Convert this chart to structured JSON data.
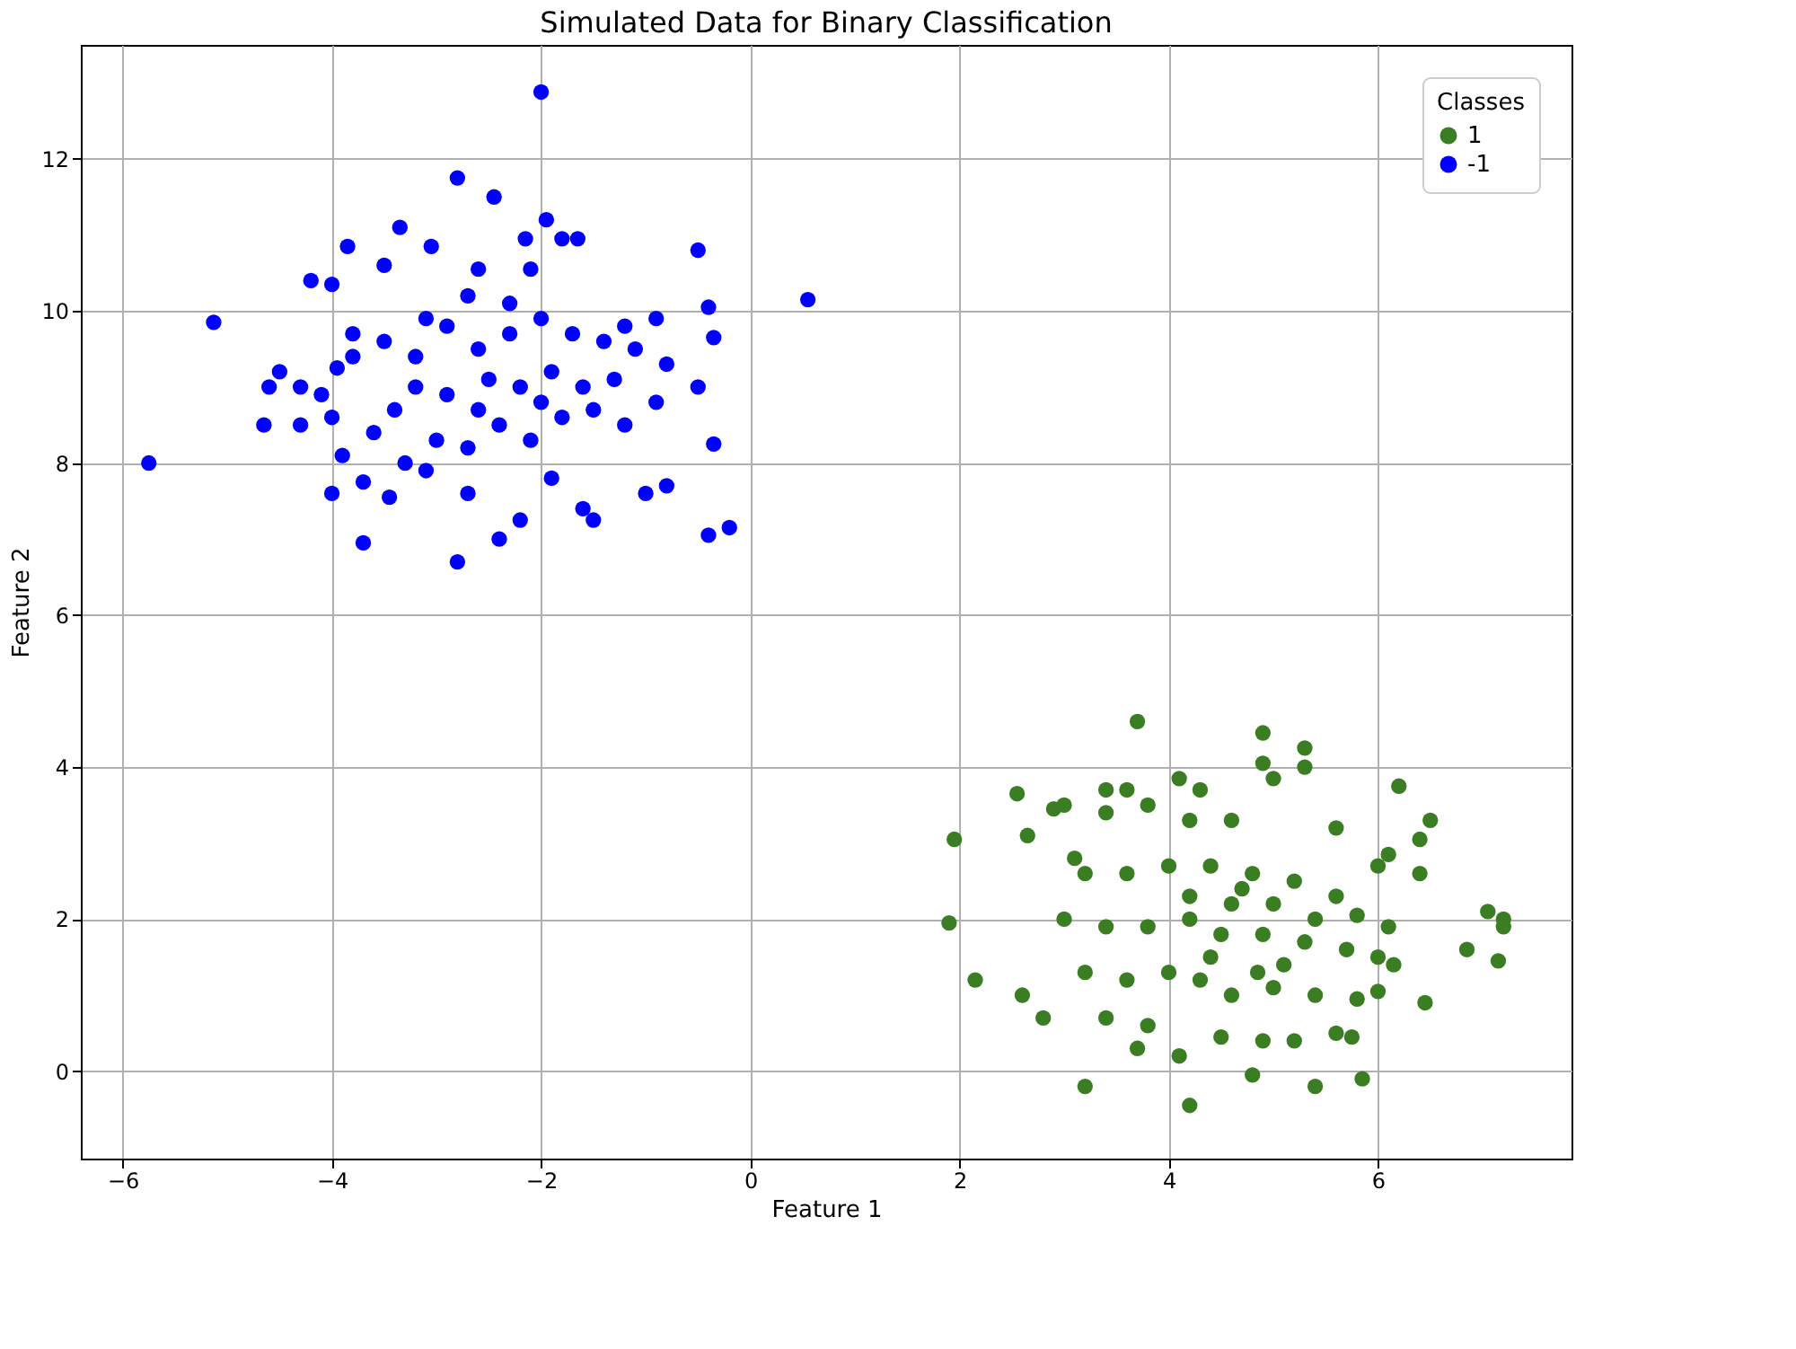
{
  "chart_data": {
    "type": "scatter",
    "title": "Simulated Data for Binary Classification",
    "xlabel": "Feature 1",
    "ylabel": "Feature 2",
    "legend_title": "Classes",
    "legend": "top right",
    "grid": true,
    "marker": "circle",
    "xlim": [
      -6.4,
      7.85
    ],
    "ylim": [
      -1.15,
      13.5
    ],
    "xticks": [
      {
        "value": -6,
        "label": "−6"
      },
      {
        "value": -4,
        "label": "−4"
      },
      {
        "value": -2,
        "label": "−2"
      },
      0,
      2,
      4,
      6
    ],
    "yticks": [
      0,
      2,
      4,
      6,
      8,
      10,
      12
    ],
    "series": [
      {
        "name": "1",
        "color": "#3a7d22",
        "x": [
          3.7,
          4.9,
          5.3,
          5.3,
          4.9,
          5.0,
          6.2,
          4.1,
          4.3,
          3.4,
          3.6,
          3.8,
          2.55,
          2.9,
          3.0,
          3.4,
          1.95,
          2.65,
          6.5,
          6.4,
          6.1,
          5.6,
          4.2,
          4.6,
          3.1,
          3.2,
          3.6,
          4.0,
          4.4,
          4.8,
          5.2,
          5.6,
          6.0,
          6.4,
          4.2,
          4.6,
          5.0,
          5.4,
          5.8,
          6.1,
          1.9,
          3.0,
          3.4,
          3.8,
          4.2,
          4.5,
          4.9,
          5.3,
          5.7,
          6.0,
          7.05,
          7.2,
          7.2,
          6.85,
          7.15,
          2.15,
          2.6,
          2.8,
          3.2,
          3.4,
          3.6,
          3.8,
          4.0,
          4.3,
          4.6,
          5.0,
          5.4,
          5.8,
          6.0,
          6.45,
          6.15,
          3.7,
          4.1,
          4.5,
          4.9,
          5.2,
          5.6,
          5.75,
          3.2,
          4.2,
          4.8,
          5.4,
          5.85,
          4.7,
          4.4,
          4.85,
          5.1
        ],
        "values": [
          4.6,
          4.45,
          4.25,
          4.0,
          4.05,
          3.85,
          3.75,
          3.85,
          3.7,
          3.7,
          3.7,
          3.5,
          3.65,
          3.45,
          3.5,
          3.4,
          3.05,
          3.1,
          3.3,
          3.05,
          2.85,
          3.2,
          3.3,
          3.3,
          2.8,
          2.6,
          2.6,
          2.7,
          2.7,
          2.6,
          2.5,
          2.3,
          2.7,
          2.6,
          2.3,
          2.2,
          2.2,
          2.0,
          2.05,
          1.9,
          1.95,
          2.0,
          1.9,
          1.9,
          2.0,
          1.8,
          1.8,
          1.7,
          1.6,
          1.5,
          2.1,
          2.0,
          1.9,
          1.6,
          1.45,
          1.2,
          1.0,
          0.7,
          1.3,
          0.7,
          1.2,
          0.6,
          1.3,
          1.2,
          1.0,
          1.1,
          1.0,
          0.95,
          1.05,
          0.9,
          1.4,
          0.3,
          0.2,
          0.45,
          0.4,
          0.4,
          0.5,
          0.45,
          -0.2,
          -0.45,
          -0.05,
          -0.2,
          -0.1,
          2.4,
          1.5,
          1.3,
          1.4
        ]
      },
      {
        "name": "-1",
        "color": "#0000ff",
        "x": [
          -5.75,
          -5.13,
          -2.0,
          -2.8,
          -2.45,
          -3.35,
          -1.95,
          -3.05,
          -3.85,
          -2.15,
          -1.65,
          -1.8,
          -0.5,
          -4.2,
          -4.0,
          -3.5,
          -2.6,
          -2.1,
          -0.4,
          0.55,
          -4.6,
          -4.5,
          -4.3,
          -3.95,
          -3.8,
          -3.5,
          -3.2,
          -2.9,
          -2.6,
          -2.3,
          -2.0,
          -1.7,
          -1.4,
          -1.1,
          -0.8,
          -0.5,
          -0.35,
          -0.9,
          -1.2,
          -4.65,
          -4.3,
          -4.0,
          -3.9,
          -3.6,
          -3.3,
          -3.0,
          -2.7,
          -2.4,
          -2.1,
          -1.8,
          -1.5,
          -1.2,
          -0.9,
          -0.35,
          -4.0,
          -3.7,
          -3.45,
          -3.1,
          -2.7,
          -2.4,
          -2.2,
          -1.9,
          -1.6,
          -1.5,
          -1.0,
          -0.8,
          -0.4,
          -0.2,
          -3.7,
          -2.8,
          -3.2,
          -2.9,
          -2.5,
          -2.2,
          -1.9,
          -1.6,
          -3.4,
          -2.6,
          -2.0,
          -1.3,
          -2.3,
          -2.7,
          -3.1,
          -3.8,
          -4.1
        ],
        "values": [
          8.0,
          9.85,
          12.88,
          11.75,
          11.5,
          11.1,
          11.2,
          10.85,
          10.85,
          10.95,
          10.95,
          10.95,
          10.8,
          10.4,
          10.35,
          10.6,
          10.55,
          10.55,
          10.05,
          10.15,
          9.0,
          9.2,
          9.0,
          9.25,
          9.7,
          9.6,
          9.4,
          9.8,
          9.5,
          9.7,
          9.9,
          9.7,
          9.6,
          9.5,
          9.3,
          9.0,
          9.65,
          9.9,
          9.8,
          8.5,
          8.5,
          8.6,
          8.1,
          8.4,
          8.0,
          8.3,
          8.2,
          8.5,
          8.3,
          8.6,
          8.7,
          8.5,
          8.8,
          8.25,
          7.6,
          7.75,
          7.55,
          7.9,
          7.6,
          7.0,
          7.25,
          7.8,
          7.4,
          7.25,
          7.6,
          7.7,
          7.05,
          7.15,
          6.95,
          6.7,
          9.0,
          8.9,
          9.1,
          9.0,
          9.2,
          9.0,
          8.7,
          8.7,
          8.8,
          9.1,
          10.1,
          10.2,
          9.9,
          9.4,
          8.9
        ]
      }
    ]
  }
}
